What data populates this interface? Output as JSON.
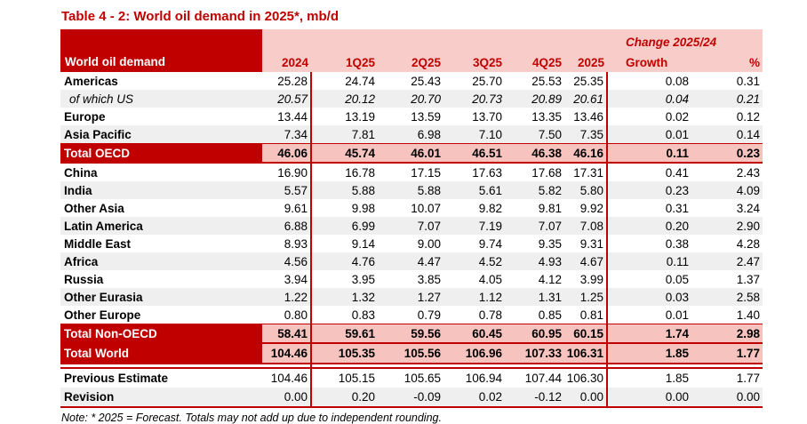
{
  "title": "Table 4 - 2: World oil demand in 2025*, mb/d",
  "note": "Note: * 2025 = Forecast. Totals may not add up due to independent rounding.",
  "colors": {
    "dark_red": "#C00000",
    "header_pink": "#F8CDC9",
    "total_pink": "#F6C3BE",
    "shaded_row_gray": "#EFEFEF",
    "white": "#FFFFFF"
  },
  "table": {
    "label_header": "World oil demand",
    "change_header": "Change 2025/24",
    "columns": [
      "2024",
      "1Q25",
      "2Q25",
      "3Q25",
      "4Q25",
      "2025",
      "Growth",
      "%"
    ],
    "rows": [
      {
        "label": "Americas",
        "variant": "normal",
        "shaded": false,
        "key": "americas",
        "values": [
          "25.28",
          "24.74",
          "25.43",
          "25.70",
          "25.53",
          "25.35",
          "0.08",
          "0.31"
        ]
      },
      {
        "label": "of which US",
        "variant": "sub",
        "shaded": true,
        "key": "of-which-us",
        "values": [
          "20.57",
          "20.12",
          "20.70",
          "20.73",
          "20.89",
          "20.61",
          "0.04",
          "0.21"
        ]
      },
      {
        "label": "Europe",
        "variant": "normal",
        "shaded": false,
        "key": "europe",
        "values": [
          "13.44",
          "13.19",
          "13.59",
          "13.70",
          "13.35",
          "13.46",
          "0.02",
          "0.12"
        ]
      },
      {
        "label": "Asia Pacific",
        "variant": "normal",
        "shaded": true,
        "key": "asia-pacific",
        "values": [
          "7.34",
          "7.81",
          "6.98",
          "7.10",
          "7.50",
          "7.35",
          "0.01",
          "0.14"
        ]
      },
      {
        "label": "Total OECD",
        "variant": "total",
        "shaded": false,
        "key": "total-oecd",
        "values": [
          "46.06",
          "45.74",
          "46.01",
          "46.51",
          "46.38",
          "46.16",
          "0.11",
          "0.23"
        ]
      },
      {
        "label": "China",
        "variant": "normal",
        "shaded": false,
        "key": "china",
        "values": [
          "16.90",
          "16.78",
          "17.15",
          "17.63",
          "17.68",
          "17.31",
          "0.41",
          "2.43"
        ]
      },
      {
        "label": "India",
        "variant": "normal",
        "shaded": true,
        "key": "india",
        "values": [
          "5.57",
          "5.88",
          "5.88",
          "5.61",
          "5.82",
          "5.80",
          "0.23",
          "4.09"
        ]
      },
      {
        "label": "Other Asia",
        "variant": "normal",
        "shaded": false,
        "key": "other-asia",
        "values": [
          "9.61",
          "9.98",
          "10.07",
          "9.82",
          "9.81",
          "9.92",
          "0.31",
          "3.24"
        ]
      },
      {
        "label": "Latin America",
        "variant": "normal",
        "shaded": true,
        "key": "latin-america",
        "values": [
          "6.88",
          "6.99",
          "7.07",
          "7.19",
          "7.07",
          "7.08",
          "0.20",
          "2.90"
        ]
      },
      {
        "label": "Middle East",
        "variant": "normal",
        "shaded": false,
        "key": "middle-east",
        "values": [
          "8.93",
          "9.14",
          "9.00",
          "9.74",
          "9.35",
          "9.31",
          "0.38",
          "4.28"
        ]
      },
      {
        "label": "Africa",
        "variant": "normal",
        "shaded": true,
        "key": "africa",
        "values": [
          "4.56",
          "4.76",
          "4.47",
          "4.52",
          "4.93",
          "4.67",
          "0.11",
          "2.47"
        ]
      },
      {
        "label": "Russia",
        "variant": "normal",
        "shaded": false,
        "key": "russia",
        "values": [
          "3.94",
          "3.95",
          "3.85",
          "4.05",
          "4.12",
          "3.99",
          "0.05",
          "1.37"
        ]
      },
      {
        "label": "Other Eurasia",
        "variant": "normal",
        "shaded": true,
        "key": "other-eurasia",
        "values": [
          "1.22",
          "1.32",
          "1.27",
          "1.12",
          "1.31",
          "1.25",
          "0.03",
          "2.58"
        ]
      },
      {
        "label": "Other Europe",
        "variant": "normal",
        "shaded": false,
        "key": "other-europe",
        "values": [
          "0.80",
          "0.83",
          "0.79",
          "0.78",
          "0.85",
          "0.81",
          "0.01",
          "1.40"
        ]
      },
      {
        "label": "Total Non-OECD",
        "variant": "total",
        "shaded": false,
        "key": "total-non-oecd",
        "values": [
          "58.41",
          "59.61",
          "59.56",
          "60.45",
          "60.95",
          "60.15",
          "1.74",
          "2.98"
        ]
      },
      {
        "label": "Total World",
        "variant": "total",
        "shaded": false,
        "key": "total-world",
        "values": [
          "104.46",
          "105.35",
          "105.56",
          "106.96",
          "107.33",
          "106.31",
          "1.85",
          "1.77"
        ]
      },
      {
        "variant": "spacer",
        "key": "spacer"
      },
      {
        "label": "Previous Estimate",
        "variant": "estimate",
        "shaded": false,
        "key": "previous-estimate",
        "values": [
          "104.46",
          "105.15",
          "105.65",
          "106.94",
          "107.44",
          "106.30",
          "1.85",
          "1.77"
        ]
      },
      {
        "label": "Revision",
        "variant": "estimate",
        "shaded": true,
        "key": "revision",
        "values": [
          "0.00",
          "0.20",
          "-0.09",
          "0.02",
          "-0.12",
          "0.00",
          "0.00",
          "0.00"
        ]
      }
    ]
  }
}
